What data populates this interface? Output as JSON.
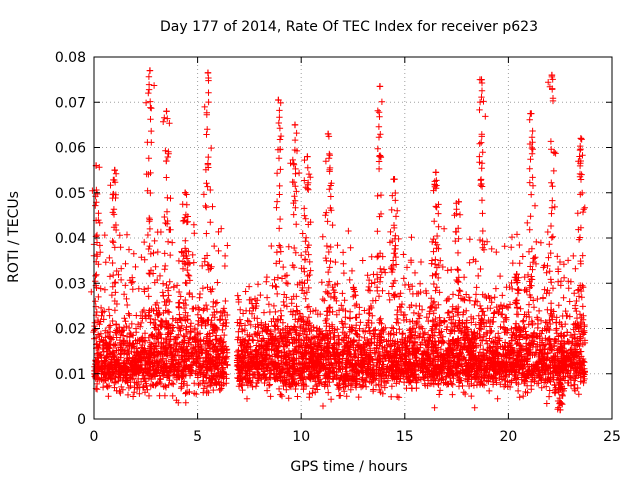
{
  "chart_data": {
    "type": "scatter",
    "title": "Day 177 of 2014, Rate Of TEC Index for receiver p623",
    "xlabel": "GPS time / hours",
    "ylabel": "ROTI / TECUs",
    "xlim": [
      0,
      25
    ],
    "ylim": [
      0,
      0.08
    ],
    "x_ticks": [
      0,
      5,
      10,
      15,
      20,
      25
    ],
    "x_tick_labels": [
      "0",
      "5",
      "10",
      "15",
      "20",
      "25"
    ],
    "y_ticks": [
      0,
      0.01,
      0.02,
      0.03,
      0.04,
      0.05,
      0.06,
      0.07,
      0.08
    ],
    "y_tick_labels": [
      "0",
      "0.01",
      "0.02",
      "0.03",
      "0.04",
      "0.05",
      "0.06",
      "0.07",
      "0.08"
    ],
    "grid": true,
    "marker": "+",
    "color": "#ff0000",
    "series": [
      {
        "name": "ROTI",
        "note": "dense cloud of ~9000 samples; data gap between 6.5 h and 6.9 h",
        "x_range": [
          0,
          23.7
        ],
        "gap": [
          6.45,
          6.9
        ],
        "baseline": 0.012,
        "typical_max": 0.035,
        "peaks": [
          {
            "x": 2.7,
            "y": 0.077
          },
          {
            "x": 5.5,
            "y": 0.0765
          },
          {
            "x": 8.9,
            "y": 0.0705
          },
          {
            "x": 11.3,
            "y": 0.063
          },
          {
            "x": 13.8,
            "y": 0.0735
          },
          {
            "x": 18.7,
            "y": 0.075
          },
          {
            "x": 22.1,
            "y": 0.076
          },
          {
            "x": 21.1,
            "y": 0.0675
          },
          {
            "x": 3.5,
            "y": 0.068
          },
          {
            "x": 9.7,
            "y": 0.065
          },
          {
            "x": 16.5,
            "y": 0.0545
          }
        ],
        "sample_points": [
          {
            "x": 0.1,
            "y": 0.056
          },
          {
            "x": 1.0,
            "y": 0.055
          },
          {
            "x": 4.4,
            "y": 0.05
          },
          {
            "x": 10.3,
            "y": 0.058
          },
          {
            "x": 14.5,
            "y": 0.053
          },
          {
            "x": 17.6,
            "y": 0.048
          },
          {
            "x": 20.4,
            "y": 0.032
          },
          {
            "x": 23.5,
            "y": 0.062
          },
          {
            "x": 22.5,
            "y": 0.002
          }
        ]
      }
    ]
  }
}
